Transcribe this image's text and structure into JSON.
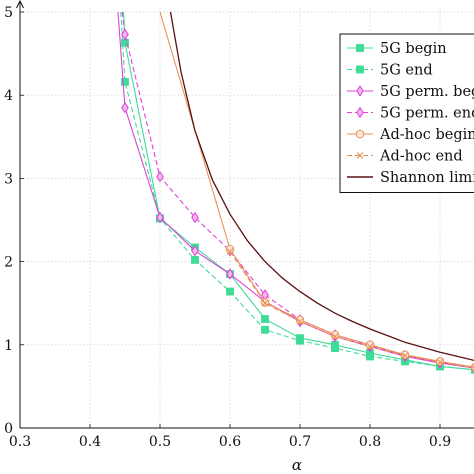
{
  "chart_data": {
    "type": "line",
    "xlabel": "α",
    "ylabel": "",
    "xlim": [
      0.3,
      0.95
    ],
    "ylim": [
      0,
      5
    ],
    "x_ticks": [
      "0.3",
      "0.4",
      "0.5",
      "0.6",
      "0.7",
      "0.8",
      "0.9"
    ],
    "y_ticks": [
      "0",
      "1",
      "2",
      "3",
      "4",
      "5"
    ],
    "grid": true,
    "legend_position": "top-right",
    "series": [
      {
        "name": "5G begin",
        "color": "#3ddc97",
        "dash": "solid",
        "marker": "square",
        "points": [
          [
            0.448,
            5.0
          ],
          [
            0.45,
            4.63
          ],
          [
            0.5,
            2.52
          ],
          [
            0.55,
            2.17
          ],
          [
            0.6,
            1.85
          ],
          [
            0.65,
            1.31
          ],
          [
            0.7,
            1.08
          ],
          [
            0.75,
            1.0
          ],
          [
            0.8,
            0.9
          ],
          [
            0.85,
            0.82
          ],
          [
            0.9,
            0.74
          ],
          [
            0.95,
            0.7
          ]
        ]
      },
      {
        "name": "5G end",
        "color": "#3ddc97",
        "dash": "dashed",
        "marker": "square",
        "points": [
          [
            0.444,
            5.0
          ],
          [
            0.45,
            4.16
          ],
          [
            0.5,
            2.52
          ],
          [
            0.55,
            2.02
          ],
          [
            0.6,
            1.64
          ],
          [
            0.65,
            1.18
          ],
          [
            0.7,
            1.05
          ],
          [
            0.75,
            0.96
          ],
          [
            0.8,
            0.86
          ],
          [
            0.85,
            0.8
          ],
          [
            0.9,
            0.74
          ],
          [
            0.95,
            0.7
          ]
        ]
      },
      {
        "name": "5G perm. begin",
        "color": "#e040d8",
        "dash": "solid",
        "marker": "diamond",
        "points": [
          [
            0.44,
            5.0
          ],
          [
            0.45,
            3.85
          ],
          [
            0.5,
            2.53
          ],
          [
            0.55,
            2.13
          ],
          [
            0.6,
            1.85
          ],
          [
            0.65,
            1.52
          ],
          [
            0.7,
            1.28
          ],
          [
            0.75,
            1.1
          ],
          [
            0.8,
            0.98
          ],
          [
            0.85,
            0.86
          ],
          [
            0.9,
            0.78
          ],
          [
            0.95,
            0.72
          ]
        ]
      },
      {
        "name": "5G perm. end",
        "color": "#e040d8",
        "dash": "dashed",
        "marker": "diamond",
        "points": [
          [
            0.446,
            5.0
          ],
          [
            0.45,
            4.73
          ],
          [
            0.5,
            3.02
          ],
          [
            0.55,
            2.53
          ],
          [
            0.6,
            2.13
          ],
          [
            0.65,
            1.6
          ],
          [
            0.7,
            1.3
          ],
          [
            0.75,
            1.12
          ],
          [
            0.8,
            0.99
          ],
          [
            0.85,
            0.87
          ],
          [
            0.9,
            0.79
          ],
          [
            0.95,
            0.72
          ]
        ]
      },
      {
        "name": "Ad-hoc begin",
        "color": "#e8915a",
        "dash": "solid",
        "marker": "circle",
        "points": [
          [
            0.5,
            5.0
          ],
          [
            0.6,
            2.15
          ],
          [
            0.65,
            1.51
          ],
          [
            0.7,
            1.3
          ],
          [
            0.75,
            1.12
          ],
          [
            0.8,
            1.0
          ],
          [
            0.85,
            0.88
          ],
          [
            0.9,
            0.8
          ],
          [
            0.95,
            0.73
          ]
        ]
      },
      {
        "name": "Ad-hoc end",
        "color": "#e8915a",
        "dash": "dashed",
        "marker": "cross",
        "points": [
          [
            0.6,
            2.12
          ],
          [
            0.65,
            1.5
          ],
          [
            0.7,
            1.28
          ],
          [
            0.75,
            1.1
          ],
          [
            0.8,
            0.98
          ],
          [
            0.85,
            0.87
          ],
          [
            0.9,
            0.79
          ],
          [
            0.95,
            0.72
          ]
        ]
      },
      {
        "name": "Shannon limit",
        "color": "#5a1010",
        "dash": "solid",
        "marker": "none",
        "points": [
          [
            0.515,
            5.0
          ],
          [
            0.53,
            4.28
          ],
          [
            0.55,
            3.57
          ],
          [
            0.575,
            2.98
          ],
          [
            0.6,
            2.57
          ],
          [
            0.625,
            2.25
          ],
          [
            0.65,
            2.0
          ],
          [
            0.675,
            1.8
          ],
          [
            0.7,
            1.64
          ],
          [
            0.725,
            1.5
          ],
          [
            0.75,
            1.38
          ],
          [
            0.775,
            1.28
          ],
          [
            0.8,
            1.19
          ],
          [
            0.825,
            1.11
          ],
          [
            0.85,
            1.03
          ],
          [
            0.875,
            0.97
          ],
          [
            0.9,
            0.91
          ],
          [
            0.925,
            0.86
          ],
          [
            0.95,
            0.81
          ]
        ]
      }
    ]
  }
}
